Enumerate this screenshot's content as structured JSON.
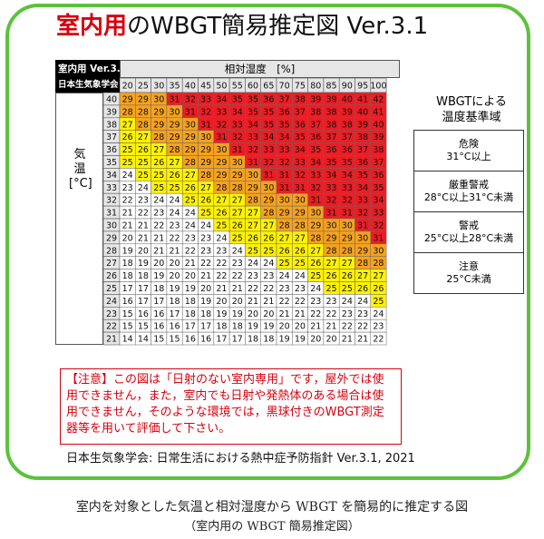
{
  "title": {
    "highlight": "室内用",
    "rest": "のWBGT簡易推定図 Ver.3.1"
  },
  "corner": {
    "line1": "室内用 Ver.3.1",
    "line2": "日本生気象学会"
  },
  "header": {
    "rh_label": "相対湿度　[%]"
  },
  "side_label": "気温 [°C]",
  "legend": {
    "title_line1": "WBGTによる",
    "title_line2": "温度基準域",
    "items": [
      {
        "name": "危険",
        "range": "31°C以上",
        "color": "#ee1c23"
      },
      {
        "name": "厳重警戒",
        "range": "28°C以上31°C未満",
        "color": "#f6a21e"
      },
      {
        "name": "警戒",
        "range": "25°C以上28°C未満",
        "color": "#fff200"
      },
      {
        "name": "注意",
        "range": "25°C未満",
        "color": "#ffffff"
      }
    ]
  },
  "note": "【注意】この図は「日射のない室内専用」です，屋外では使用できません，また，室内でも日射や発熱体のある場合は使用できません，そのような環境では，黒球付きのWBGT測定器等を用いて評価して下さい。",
  "source": "日本生気象学会: 日常生活における熱中症予防指針 Ver.3.1, 2021",
  "caption_line1": "室内を対象とした気温と相対湿度から WBGT を簡易的に推定する図",
  "caption_line2": "（室内用の WBGT 簡易推定図）",
  "chart_data": {
    "type": "heatmap",
    "xlabel": "相対湿度　[%]",
    "ylabel": "気温 [°C]",
    "x": [
      20,
      25,
      30,
      35,
      40,
      45,
      50,
      55,
      60,
      65,
      70,
      75,
      80,
      85,
      90,
      95,
      100
    ],
    "y": [
      40,
      39,
      38,
      37,
      36,
      35,
      34,
      33,
      32,
      31,
      30,
      29,
      28,
      27,
      26,
      25,
      24,
      23,
      22,
      21
    ],
    "values": [
      [
        29,
        29,
        30,
        31,
        32,
        33,
        34,
        35,
        35,
        36,
        37,
        38,
        39,
        39,
        40,
        41,
        42
      ],
      [
        28,
        28,
        29,
        30,
        31,
        32,
        33,
        34,
        35,
        35,
        36,
        37,
        38,
        38,
        39,
        40,
        41
      ],
      [
        27,
        28,
        29,
        29,
        30,
        31,
        32,
        33,
        34,
        35,
        35,
        36,
        37,
        38,
        38,
        39,
        40
      ],
      [
        26,
        27,
        28,
        29,
        29,
        30,
        31,
        32,
        33,
        34,
        34,
        35,
        36,
        37,
        37,
        38,
        39
      ],
      [
        25,
        26,
        27,
        28,
        29,
        29,
        30,
        31,
        32,
        33,
        33,
        34,
        35,
        36,
        36,
        37,
        38
      ],
      [
        25,
        25,
        26,
        27,
        28,
        29,
        29,
        30,
        31,
        32,
        32,
        33,
        34,
        35,
        35,
        36,
        37
      ],
      [
        24,
        25,
        25,
        26,
        27,
        28,
        29,
        29,
        30,
        31,
        31,
        32,
        33,
        34,
        34,
        35,
        36
      ],
      [
        23,
        24,
        25,
        25,
        26,
        27,
        28,
        28,
        29,
        30,
        31,
        31,
        32,
        33,
        33,
        34,
        35
      ],
      [
        22,
        23,
        24,
        24,
        25,
        26,
        27,
        27,
        28,
        29,
        30,
        30,
        31,
        32,
        32,
        33,
        34
      ],
      [
        21,
        22,
        23,
        24,
        24,
        25,
        26,
        27,
        27,
        28,
        29,
        29,
        30,
        31,
        31,
        32,
        33
      ],
      [
        21,
        21,
        22,
        23,
        24,
        24,
        25,
        26,
        27,
        27,
        28,
        28,
        29,
        30,
        30,
        31,
        32
      ],
      [
        20,
        21,
        21,
        22,
        23,
        23,
        24,
        25,
        26,
        26,
        27,
        27,
        28,
        29,
        29,
        30,
        31
      ],
      [
        19,
        20,
        21,
        21,
        22,
        23,
        23,
        24,
        25,
        25,
        26,
        26,
        27,
        28,
        28,
        29,
        30
      ],
      [
        18,
        19,
        20,
        20,
        21,
        22,
        22,
        23,
        24,
        24,
        25,
        25,
        26,
        27,
        27,
        28,
        28
      ],
      [
        18,
        18,
        19,
        20,
        20,
        21,
        22,
        22,
        23,
        23,
        24,
        24,
        25,
        26,
        26,
        27,
        27
      ],
      [
        17,
        17,
        18,
        19,
        19,
        20,
        21,
        21,
        22,
        22,
        23,
        23,
        24,
        25,
        25,
        26,
        26
      ],
      [
        16,
        17,
        17,
        18,
        18,
        19,
        20,
        20,
        21,
        21,
        22,
        22,
        23,
        23,
        24,
        24,
        25
      ],
      [
        15,
        16,
        16,
        17,
        18,
        18,
        19,
        19,
        20,
        20,
        21,
        21,
        22,
        22,
        23,
        23,
        24
      ],
      [
        15,
        15,
        16,
        16,
        17,
        17,
        18,
        18,
        19,
        19,
        20,
        20,
        21,
        21,
        22,
        22,
        23
      ],
      [
        14,
        14,
        15,
        15,
        16,
        16,
        17,
        17,
        18,
        18,
        19,
        19,
        20,
        20,
        21,
        21,
        22
      ]
    ],
    "bands": [
      {
        "min": 31,
        "color": "#ee1c23"
      },
      {
        "min": 28,
        "color": "#f6a21e"
      },
      {
        "min": 25,
        "color": "#fff200"
      },
      {
        "min": -100,
        "color": "#ffffff"
      }
    ]
  }
}
